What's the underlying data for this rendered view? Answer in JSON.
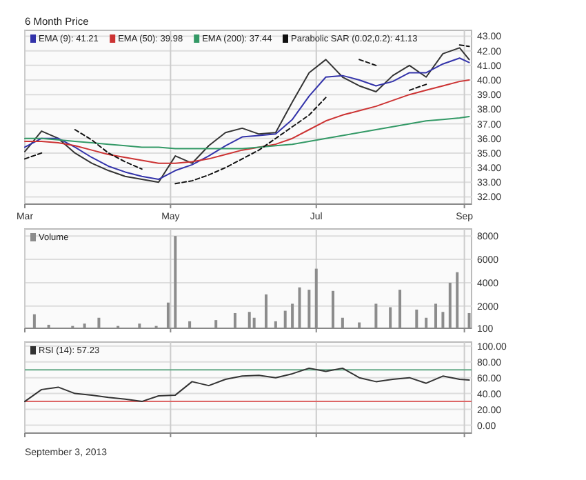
{
  "chart_data": [
    {
      "type": "line",
      "title": "6 Month Price",
      "legend": "top left",
      "grid": true,
      "x": [
        "2013-03-01",
        "2013-03-08",
        "2013-03-15",
        "2013-03-22",
        "2013-03-29",
        "2013-04-05",
        "2013-04-12",
        "2013-04-19",
        "2013-04-26",
        "2013-05-03",
        "2013-05-10",
        "2013-05-17",
        "2013-05-24",
        "2013-05-31",
        "2013-06-07",
        "2013-06-14",
        "2013-06-21",
        "2013-06-28",
        "2013-07-05",
        "2013-07-12",
        "2013-07-19",
        "2013-07-26",
        "2013-08-02",
        "2013-08-09",
        "2013-08-16",
        "2013-08-23",
        "2013-08-30",
        "2013-09-03"
      ],
      "xlim": [
        "2013-03-01",
        "2013-09-04"
      ],
      "xticks": [
        {
          "value": "2013-03-01",
          "label": "Mar"
        },
        {
          "value": "2013-05-01",
          "label": "May"
        },
        {
          "value": "2013-07-01",
          "label": "Jul"
        },
        {
          "value": "2013-09-01",
          "label": "Sep"
        }
      ],
      "ylim": [
        31.5,
        43.4
      ],
      "yticks": [
        {
          "value": 32,
          "label": "32.00"
        },
        {
          "value": 33,
          "label": "33.00"
        },
        {
          "value": 34,
          "label": "34.00"
        },
        {
          "value": 35,
          "label": "35.00"
        },
        {
          "value": 36,
          "label": "36.00"
        },
        {
          "value": 37,
          "label": "37.00"
        },
        {
          "value": 38,
          "label": "38.00"
        },
        {
          "value": 39,
          "label": "39.00"
        },
        {
          "value": 40,
          "label": "40.00"
        },
        {
          "value": 41,
          "label": "41.00"
        },
        {
          "value": 42,
          "label": "42.00"
        },
        {
          "value": 43,
          "label": "43.00"
        }
      ],
      "series": [
        {
          "color": "#333333",
          "values": [
            35.1,
            36.5,
            36.0,
            35.0,
            34.3,
            33.8,
            33.4,
            33.2,
            33.0,
            34.8,
            34.3,
            35.5,
            36.4,
            36.7,
            36.3,
            36.4,
            38.5,
            40.5,
            41.4,
            40.2,
            39.6,
            39.2,
            40.3,
            41.0,
            40.2,
            41.8,
            42.2,
            41.4
          ]
        },
        {
          "name": "EMA (9): 41.21",
          "color": "#3333aa",
          "values": [
            35.4,
            36.0,
            36.0,
            35.4,
            34.7,
            34.1,
            33.7,
            33.4,
            33.2,
            33.8,
            34.2,
            34.8,
            35.5,
            36.1,
            36.2,
            36.3,
            37.3,
            38.9,
            40.2,
            40.3,
            40.0,
            39.6,
            39.9,
            40.5,
            40.5,
            41.1,
            41.5,
            41.2
          ]
        },
        {
          "name": "EMA (50): 39.98",
          "color": "#cc3333",
          "values": [
            35.8,
            35.8,
            35.7,
            35.5,
            35.2,
            34.9,
            34.7,
            34.5,
            34.3,
            34.3,
            34.4,
            34.6,
            34.9,
            35.2,
            35.4,
            35.6,
            36.0,
            36.6,
            37.2,
            37.6,
            37.9,
            38.2,
            38.6,
            39.0,
            39.3,
            39.6,
            39.9,
            40.0
          ]
        },
        {
          "name": "EMA (200): 37.44",
          "color": "#339966",
          "values": [
            36.0,
            36.0,
            35.9,
            35.8,
            35.7,
            35.6,
            35.5,
            35.4,
            35.4,
            35.3,
            35.3,
            35.3,
            35.3,
            35.3,
            35.4,
            35.5,
            35.6,
            35.8,
            36.0,
            36.2,
            36.4,
            36.6,
            36.8,
            37.0,
            37.2,
            37.3,
            37.4,
            37.5
          ]
        },
        {
          "name": "Parabolic SAR (0.02,0.2): 41.13",
          "color": "#111111",
          "line_style": "dashed",
          "values": [
            34.6,
            35.0,
            null,
            36.6,
            35.9,
            35.0,
            34.4,
            33.9,
            null,
            32.9,
            33.1,
            33.5,
            34.0,
            34.6,
            35.2,
            36.0,
            36.8,
            37.6,
            38.8,
            null,
            41.4,
            41.0,
            null,
            39.3,
            39.7,
            null,
            42.4,
            42.3
          ]
        }
      ]
    },
    {
      "type": "bar",
      "legend": "top left",
      "grid": true,
      "tick_labels": "y",
      "x": [
        "2013-03-05",
        "2013-03-11",
        "2013-03-21",
        "2013-03-26",
        "2013-04-01",
        "2013-04-09",
        "2013-04-18",
        "2013-04-25",
        "2013-04-30",
        "2013-05-03",
        "2013-05-09",
        "2013-05-20",
        "2013-05-28",
        "2013-06-03",
        "2013-06-05",
        "2013-06-10",
        "2013-06-14",
        "2013-06-18",
        "2013-06-21",
        "2013-06-24",
        "2013-06-28",
        "2013-07-01",
        "2013-07-08",
        "2013-07-12",
        "2013-07-19",
        "2013-07-26",
        "2013-08-01",
        "2013-08-05",
        "2013-08-12",
        "2013-08-16",
        "2013-08-20",
        "2013-08-23",
        "2013-08-26",
        "2013-08-29",
        "2013-09-03"
      ],
      "xlim": [
        "2013-03-01",
        "2013-09-04"
      ],
      "xticks": [
        {
          "value": "2013-03-01",
          "label": null
        },
        {
          "value": "2013-05-01",
          "label": null
        },
        {
          "value": "2013-07-01",
          "label": null
        },
        {
          "value": "2013-09-01",
          "label": null
        }
      ],
      "ylim": [
        100,
        8600
      ],
      "yticks": [
        100,
        2000,
        4000,
        6000,
        8000
      ],
      "series": [
        {
          "name": "Volume",
          "color": "#8c8c8c",
          "values": [
            1300,
            400,
            300,
            500,
            1000,
            300,
            500,
            300,
            2300,
            8000,
            700,
            800,
            1400,
            1500,
            1000,
            3000,
            700,
            1600,
            2200,
            3600,
            3400,
            5200,
            3300,
            1000,
            600,
            2200,
            1900,
            3400,
            1700,
            1000,
            2200,
            1500,
            4000,
            4900,
            1400
          ]
        }
      ]
    },
    {
      "type": "line",
      "legend": "top left",
      "grid": true,
      "tick_labels": "y",
      "x": [
        "2013-03-01",
        "2013-03-08",
        "2013-03-15",
        "2013-03-22",
        "2013-03-29",
        "2013-04-05",
        "2013-04-12",
        "2013-04-19",
        "2013-04-26",
        "2013-05-03",
        "2013-05-10",
        "2013-05-17",
        "2013-05-24",
        "2013-05-31",
        "2013-06-07",
        "2013-06-14",
        "2013-06-21",
        "2013-06-28",
        "2013-07-05",
        "2013-07-12",
        "2013-07-19",
        "2013-07-26",
        "2013-08-02",
        "2013-08-09",
        "2013-08-16",
        "2013-08-23",
        "2013-08-30",
        "2013-09-03"
      ],
      "xlim": [
        "2013-03-01",
        "2013-09-04"
      ],
      "xticks": [
        {
          "value": "2013-03-01",
          "label": null
        },
        {
          "value": "2013-05-01",
          "label": null
        },
        {
          "value": "2013-07-01",
          "label": null
        },
        {
          "value": "2013-09-01",
          "label": null
        }
      ],
      "ylim": [
        -10,
        105
      ],
      "yticks": [
        {
          "value": 0,
          "label": "0.00"
        },
        {
          "value": 20,
          "label": "20.00"
        },
        {
          "value": 40,
          "label": "40.00"
        },
        {
          "value": 60,
          "label": "60.00"
        },
        {
          "value": 80,
          "label": "80.00"
        },
        {
          "value": 100,
          "label": "100.00"
        }
      ],
      "ref_lines": [
        {
          "axis": "y",
          "value": 70,
          "color": "#66aa88"
        },
        {
          "axis": "y",
          "value": 30,
          "color": "#dd6666"
        }
      ],
      "annotations": [
        "September 3, 2013"
      ],
      "series": [
        {
          "name": "RSI (14): 57.23",
          "color": "#333333",
          "values": [
            30,
            45,
            48,
            40,
            38,
            35,
            33,
            30,
            37,
            38,
            55,
            50,
            58,
            62,
            63,
            60,
            65,
            72,
            68,
            72,
            60,
            55,
            58,
            60,
            53,
            62,
            58,
            57
          ]
        }
      ]
    }
  ]
}
